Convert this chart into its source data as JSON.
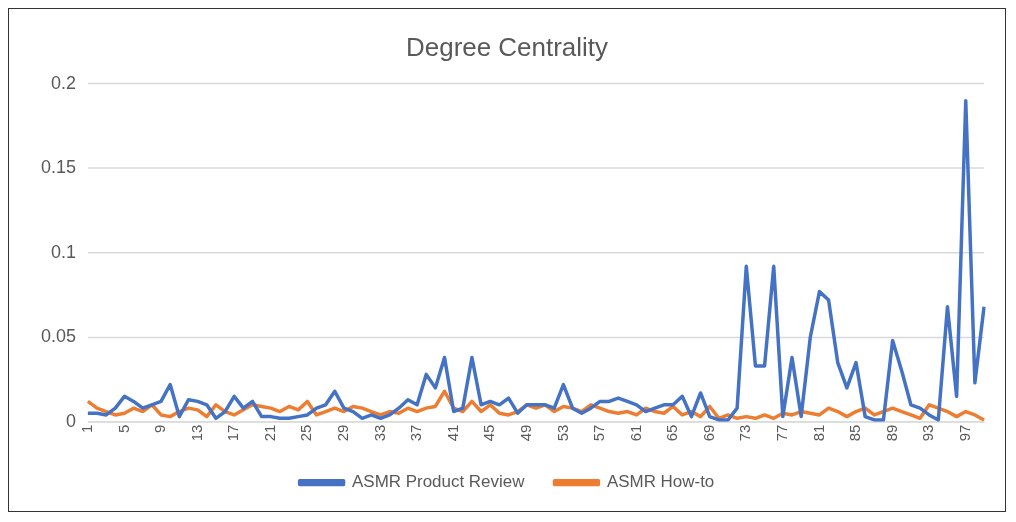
{
  "chart_data": {
    "type": "line",
    "title": "Degree Centrality",
    "categories": [
      "1",
      null,
      null,
      null,
      "5",
      null,
      null,
      null,
      "9",
      null,
      null,
      null,
      "13",
      null,
      null,
      null,
      "17",
      null,
      null,
      null,
      "21",
      null,
      null,
      null,
      "25",
      null,
      null,
      null,
      "29",
      null,
      null,
      null,
      "33",
      null,
      null,
      null,
      "37",
      null,
      null,
      null,
      "41",
      null,
      null,
      null,
      "45",
      null,
      null,
      null,
      "49",
      null,
      null,
      null,
      "53",
      null,
      null,
      null,
      "57",
      null,
      null,
      null,
      "61",
      null,
      null,
      null,
      "65",
      null,
      null,
      null,
      "69",
      null,
      null,
      null,
      "73",
      null,
      null,
      null,
      "77",
      null,
      null,
      null,
      "81",
      null,
      null,
      null,
      "85",
      null,
      null,
      null,
      "89",
      null,
      null,
      null,
      "93",
      null,
      null,
      null,
      "97",
      null,
      null
    ],
    "series": [
      {
        "name": "ASMR Product Review",
        "color": "#4472c4",
        "values": [
          0.005,
          0.005,
          0.004,
          0.008,
          0.015,
          0.012,
          0.008,
          0.01,
          0.012,
          0.022,
          0.003,
          0.013,
          0.012,
          0.01,
          0.002,
          0.006,
          0.015,
          0.008,
          0.012,
          0.003,
          0.003,
          0.002,
          0.002,
          0.003,
          0.004,
          0.008,
          0.01,
          0.018,
          0.008,
          0.006,
          0.002,
          0.004,
          0.002,
          0.004,
          0.008,
          0.013,
          0.01,
          0.028,
          0.02,
          0.038,
          0.006,
          0.008,
          0.038,
          0.01,
          0.012,
          0.01,
          0.014,
          0.005,
          0.01,
          0.01,
          0.01,
          0.008,
          0.022,
          0.008,
          0.005,
          0.008,
          0.012,
          0.012,
          0.014,
          0.012,
          0.01,
          0.006,
          0.008,
          0.01,
          0.01,
          0.015,
          0.003,
          0.017,
          0.003,
          0.001,
          0.001,
          0.008,
          0.092,
          0.033,
          0.033,
          0.092,
          0.003,
          0.038,
          0.003,
          0.05,
          0.077,
          0.072,
          0.035,
          0.02,
          0.035,
          0.003,
          0.001,
          0.001,
          0.048,
          0.03,
          0.01,
          0.008,
          0.004,
          0.001,
          0.068,
          0.015,
          0.19,
          0.023,
          0.068
        ]
      },
      {
        "name": "ASMR How-to",
        "color": "#ed7d31",
        "values": [
          0.012,
          0.008,
          0.006,
          0.004,
          0.005,
          0.008,
          0.006,
          0.01,
          0.004,
          0.003,
          0.006,
          0.008,
          0.007,
          0.003,
          0.01,
          0.006,
          0.004,
          0.007,
          0.01,
          0.009,
          0.008,
          0.006,
          0.009,
          0.007,
          0.012,
          0.004,
          0.006,
          0.008,
          0.006,
          0.009,
          0.008,
          0.006,
          0.004,
          0.006,
          0.005,
          0.008,
          0.006,
          0.008,
          0.009,
          0.018,
          0.008,
          0.006,
          0.012,
          0.006,
          0.01,
          0.005,
          0.004,
          0.006,
          0.01,
          0.008,
          0.01,
          0.006,
          0.009,
          0.008,
          0.006,
          0.01,
          0.008,
          0.006,
          0.005,
          0.006,
          0.004,
          0.008,
          0.006,
          0.005,
          0.009,
          0.004,
          0.006,
          0.003,
          0.009,
          0.002,
          0.004,
          0.002,
          0.003,
          0.002,
          0.004,
          0.002,
          0.005,
          0.004,
          0.006,
          0.005,
          0.004,
          0.008,
          0.006,
          0.003,
          0.006,
          0.008,
          0.004,
          0.006,
          0.008,
          0.006,
          0.004,
          0.002,
          0.01,
          0.008,
          0.006,
          0.003,
          0.006,
          0.004,
          0.001
        ]
      }
    ],
    "ylim": [
      0,
      0.2
    ],
    "yticks": [
      0,
      0.05,
      0.1,
      0.15,
      0.2
    ],
    "grid": "y",
    "legend": "bottom",
    "marker": "none",
    "line_style": "solid"
  }
}
